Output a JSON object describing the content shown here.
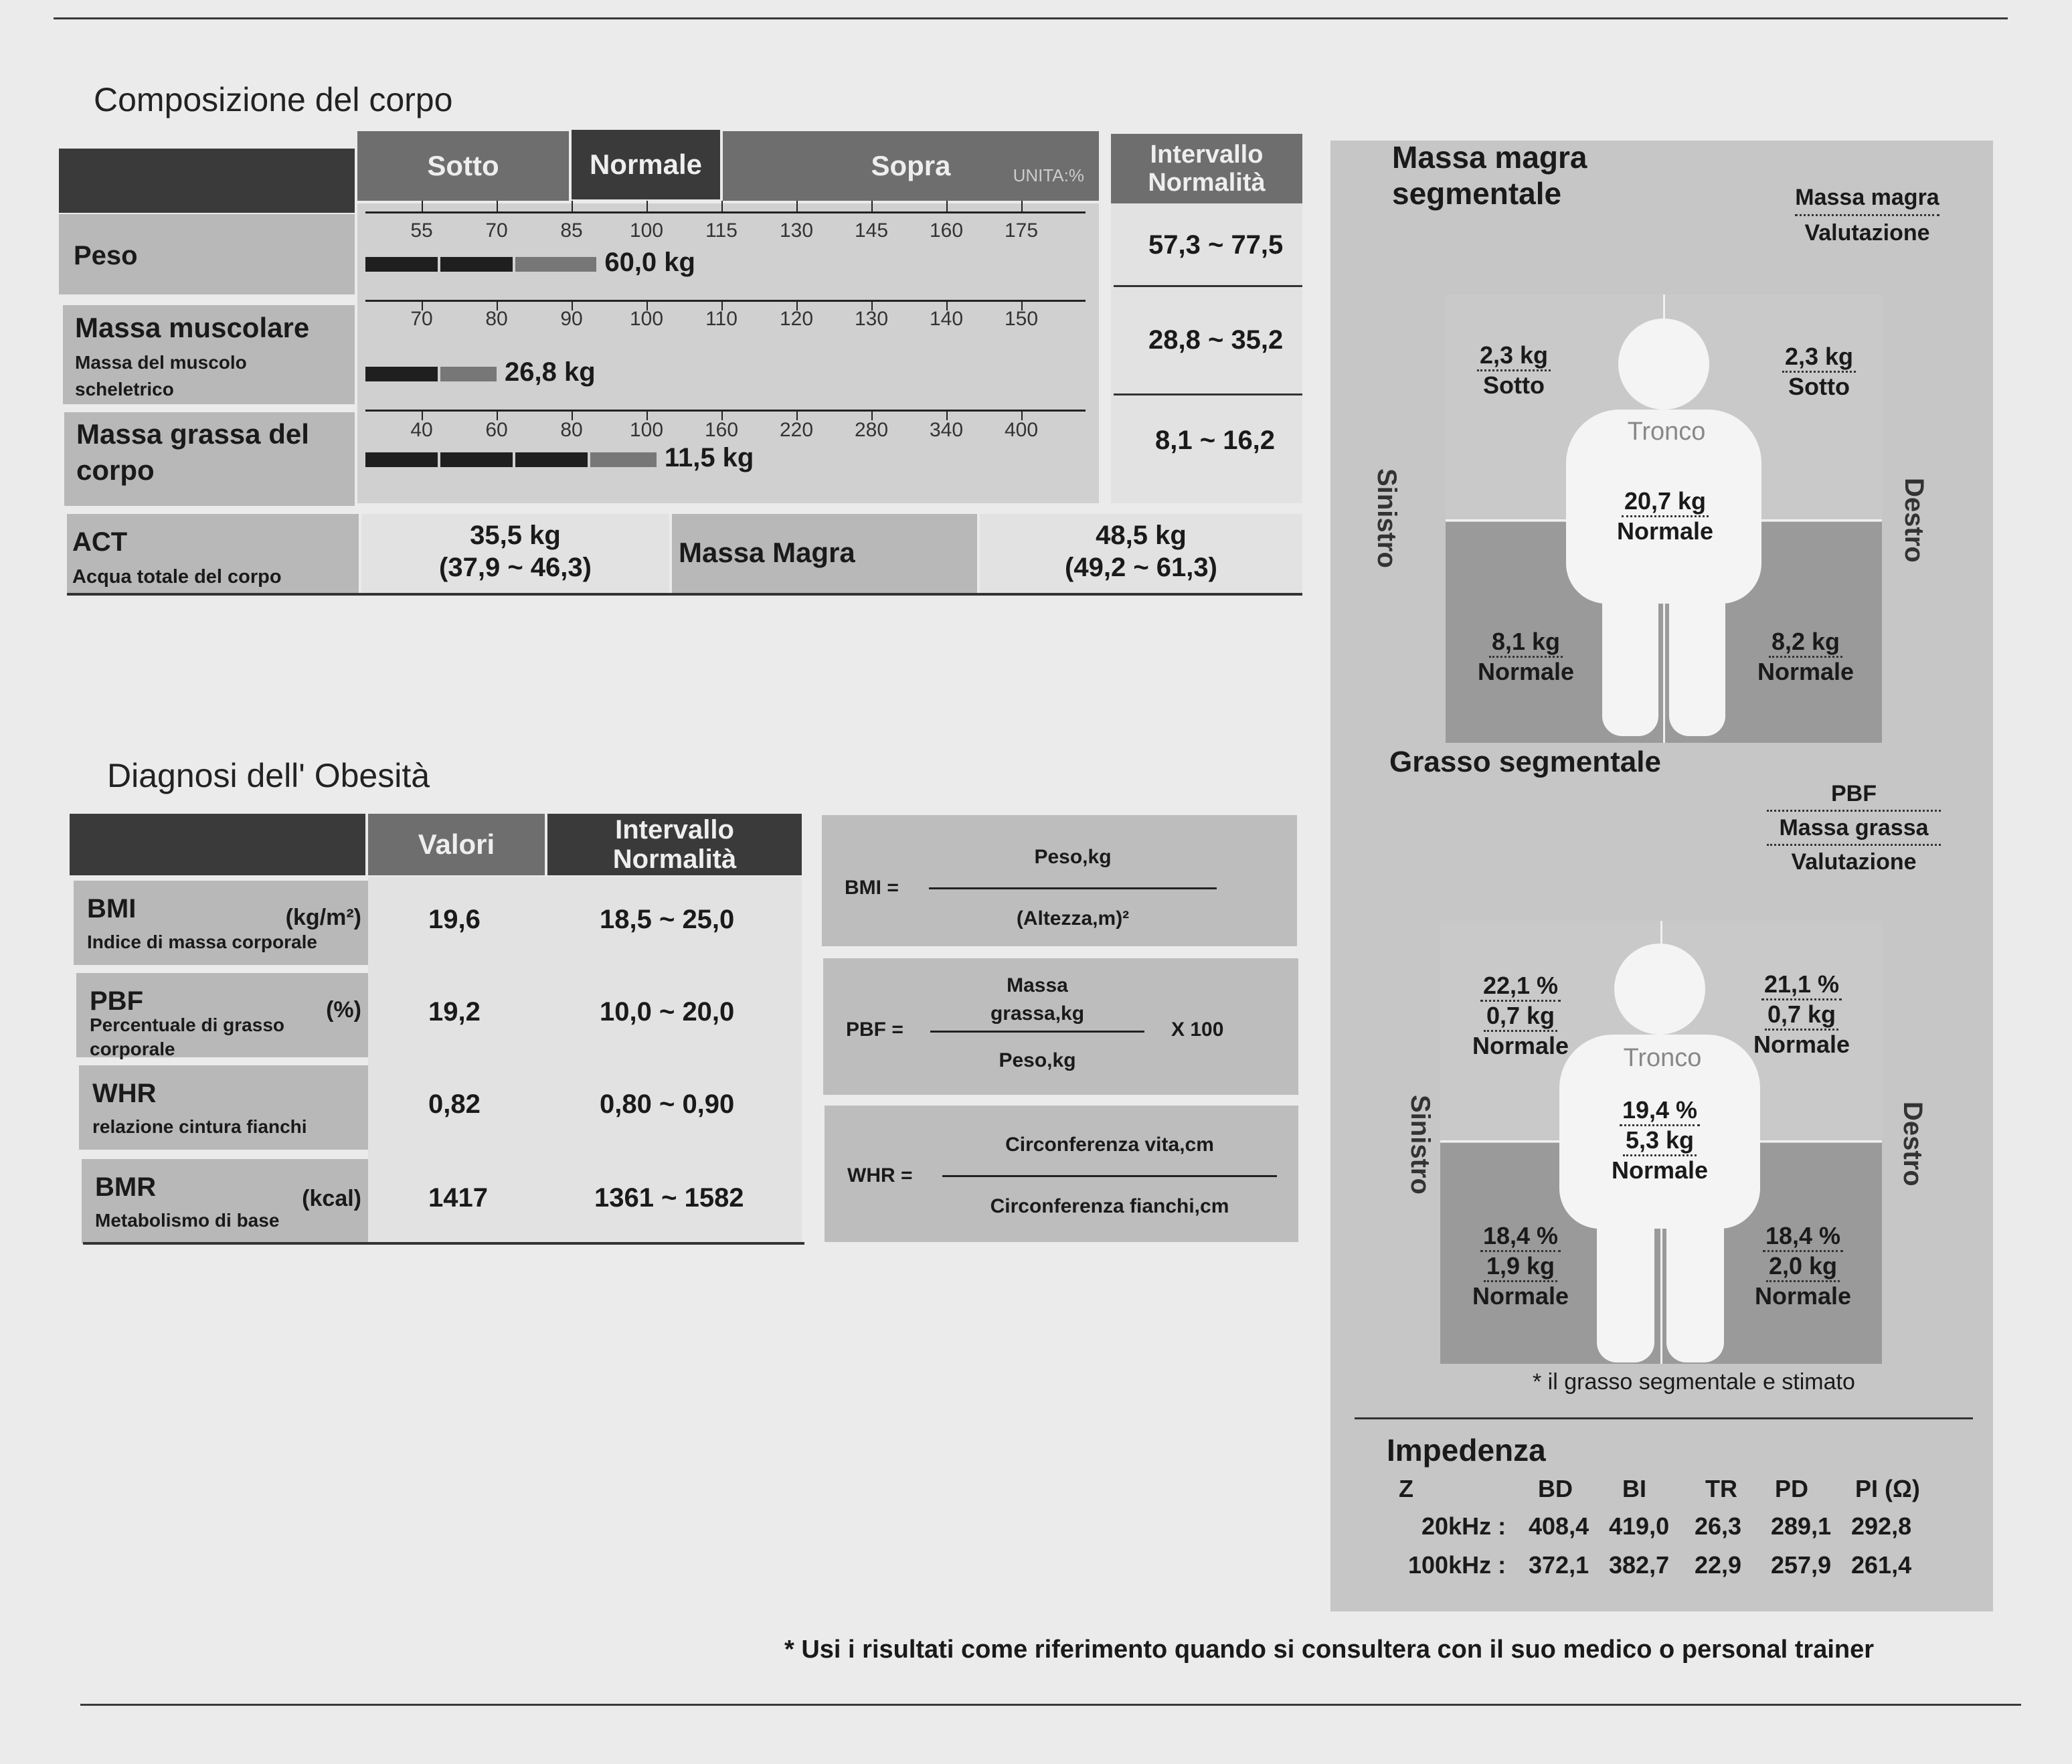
{
  "composition": {
    "title": "Composizione del corpo",
    "headers": {
      "sotto": "Sotto",
      "normale": "Normale",
      "sopra": "Sopra",
      "unit": "UNITA:%",
      "range": "Intervallo Normalità"
    },
    "rows": [
      {
        "label": "Peso",
        "sublabel": "",
        "ticks": [
          "55",
          "70",
          "85",
          "100",
          "115",
          "130",
          "145",
          "160",
          "175"
        ],
        "value": "60,0 kg",
        "percent": 90,
        "range": "57,3 ~ 77,5"
      },
      {
        "label": "Massa muscolare",
        "sublabel": "Massa del muscolo scheletrico",
        "ticks": [
          "70",
          "80",
          "90",
          "100",
          "110",
          "120",
          "130",
          "140",
          "150"
        ],
        "value": "26,8 kg",
        "percent": 80,
        "range": "28,8 ~ 35,2"
      },
      {
        "label": "Massa grassa del corpo",
        "sublabel": "",
        "ticks": [
          "40",
          "60",
          "80",
          "100",
          "160",
          "220",
          "280",
          "340",
          "400"
        ],
        "value": "11,5 kg",
        "percent": 108,
        "range": "8,1 ~ 16,2"
      }
    ],
    "act": {
      "label": "ACT",
      "sublabel": "Acqua totale del corpo",
      "value": "35,5 kg",
      "range": "(37,9 ~ 46,3)"
    },
    "lean": {
      "label": "Massa Magra",
      "value": "48,5 kg",
      "range": "(49,2 ~ 61,3)"
    }
  },
  "obesity": {
    "title": "Diagnosi dell' Obesità",
    "headers": {
      "values": "Valori",
      "range": "Intervallo Normalità"
    },
    "rows": [
      {
        "label": "BMI",
        "unit": "(kg/m²)",
        "sublabel": "Indice di massa corporale",
        "value": "19,6",
        "range": "18,5 ~ 25,0"
      },
      {
        "label": "PBF",
        "unit": "(%)",
        "sublabel": "Percentuale di grasso corporale",
        "value": "19,2",
        "range": "10,0 ~ 20,0"
      },
      {
        "label": "WHR",
        "unit": "",
        "sublabel": "relazione cintura fianchi",
        "value": "0,82",
        "range": "0,80 ~ 0,90"
      },
      {
        "label": "BMR",
        "unit": "(kcal)",
        "sublabel": "Metabolismo di base",
        "value": "1417",
        "range": "1361 ~ 1582"
      }
    ],
    "formulas": {
      "bmi": {
        "lhs": "BMI =",
        "num": "Peso,kg",
        "den": "(Altezza,m)²"
      },
      "pbf": {
        "lhs": "PBF =",
        "num1": "Massa",
        "num2": "grassa,kg",
        "den": "Peso,kg",
        "mult": "X 100"
      },
      "whr": {
        "lhs": "WHR =",
        "num": "Circonferenza vita,cm",
        "den": "Circonferenza fianchi,cm"
      }
    }
  },
  "lean_segmental": {
    "title1": "Massa magra",
    "title2": "segmentale",
    "legend1": "Massa magra",
    "legend2": "Valutazione",
    "trunk_label": "Tronco",
    "left_label": "Sinistro",
    "right_label": "Destro",
    "left_arm": {
      "kg": "2,3 kg",
      "eval": "Sotto"
    },
    "right_arm": {
      "kg": "2,3 kg",
      "eval": "Sotto"
    },
    "trunk": {
      "kg": "20,7 kg",
      "eval": "Normale"
    },
    "left_leg": {
      "kg": "8,1 kg",
      "eval": "Normale"
    },
    "right_leg": {
      "kg": "8,2 kg",
      "eval": "Normale"
    }
  },
  "fat_segmental": {
    "title": "Grasso segmentale",
    "legend1": "PBF",
    "legend2": "Massa grassa",
    "legend3": "Valutazione",
    "trunk_label": "Tronco",
    "left_label": "Sinistro",
    "right_label": "Destro",
    "left_arm": {
      "pct": "22,1 %",
      "kg": "0,7 kg",
      "eval": "Normale"
    },
    "right_arm": {
      "pct": "21,1 %",
      "kg": "0,7 kg",
      "eval": "Normale"
    },
    "trunk": {
      "pct": "19,4 %",
      "kg": "5,3 kg",
      "eval": "Normale"
    },
    "left_leg": {
      "pct": "18,4 %",
      "kg": "1,9 kg",
      "eval": "Normale"
    },
    "right_leg": {
      "pct": "18,4 %",
      "kg": "2,0 kg",
      "eval": "Normale"
    },
    "note": "* il grasso segmentale e stimato"
  },
  "impedance": {
    "title": "Impedenza",
    "columns": [
      "Z",
      "BD",
      "BI",
      "TR",
      "PD",
      "PI (Ω)"
    ],
    "rows": [
      {
        "freq": "20kHz :",
        "values": [
          "408,4",
          "419,0",
          "26,3",
          "289,1",
          "292,8"
        ]
      },
      {
        "freq": "100kHz :",
        "values": [
          "372,1",
          "382,7",
          "22,9",
          "257,9",
          "261,4"
        ]
      }
    ]
  },
  "footer": "* Usi i risultati come riferimento quando si consultera con il suo medico o personal trainer"
}
